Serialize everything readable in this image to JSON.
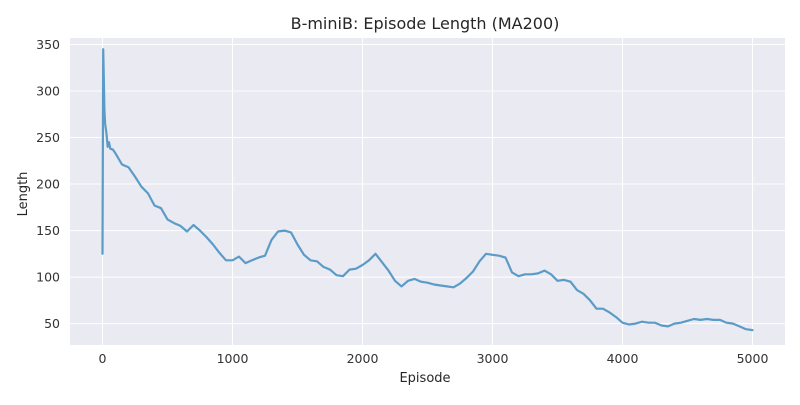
{
  "chart_data": {
    "type": "line",
    "title": "B-miniB: Episode Length (MA200)",
    "xlabel": "Episode",
    "ylabel": "Length",
    "xlim": [
      -250,
      5250
    ],
    "ylim": [
      27,
      357
    ],
    "xticks": [
      0,
      1000,
      2000,
      3000,
      4000,
      5000
    ],
    "yticks": [
      50,
      100,
      150,
      200,
      250,
      300,
      350
    ],
    "grid": true,
    "legend": "none",
    "colors": {
      "background": "#eaeaf2",
      "grid": "#ffffff",
      "line": "#5b9bc8"
    },
    "series": [
      {
        "x": [
          0,
          5,
          10,
          15,
          20,
          30,
          40,
          50,
          60,
          80,
          100,
          150,
          200,
          250,
          300,
          350,
          400,
          450,
          500,
          550,
          600,
          650,
          700,
          750,
          800,
          850,
          900,
          950,
          1000,
          1050,
          1100,
          1150,
          1200,
          1250,
          1300,
          1350,
          1400,
          1450,
          1500,
          1550,
          1600,
          1650,
          1700,
          1750,
          1800,
          1850,
          1900,
          1950,
          2000,
          2050,
          2100,
          2150,
          2200,
          2250,
          2300,
          2350,
          2400,
          2450,
          2500,
          2550,
          2600,
          2650,
          2700,
          2750,
          2800,
          2850,
          2900,
          2950,
          3000,
          3050,
          3100,
          3150,
          3200,
          3250,
          3300,
          3350,
          3400,
          3450,
          3500,
          3550,
          3600,
          3650,
          3700,
          3750,
          3800,
          3850,
          3900,
          3950,
          4000,
          4050,
          4100,
          4150,
          4200,
          4250,
          4300,
          4350,
          4400,
          4450,
          4500,
          4550,
          4600,
          4650,
          4700,
          4750,
          4800,
          4850,
          4900,
          4950,
          5000
        ],
        "values": [
          125,
          345,
          315,
          280,
          265,
          255,
          240,
          245,
          238,
          237,
          233,
          221,
          218,
          208,
          197,
          190,
          177,
          174,
          162,
          158,
          155,
          149,
          156,
          150,
          143,
          135,
          126,
          118,
          118,
          122,
          115,
          118,
          121,
          123,
          140,
          149,
          150,
          148,
          135,
          124,
          118,
          117,
          111,
          108,
          102,
          101,
          108,
          109,
          113,
          118,
          125,
          116,
          107,
          96,
          90,
          96,
          98,
          95,
          94,
          92,
          91,
          90,
          89,
          93,
          99,
          106,
          117,
          125,
          124,
          123,
          121,
          105,
          101,
          103,
          103,
          104,
          107,
          103,
          96,
          97,
          95,
          86,
          82,
          75,
          66,
          66,
          62,
          57,
          51,
          49,
          50,
          52,
          51,
          51,
          48,
          47,
          50,
          51,
          53,
          55,
          54,
          55,
          54,
          54,
          51,
          50,
          47,
          44,
          43
        ]
      }
    ]
  }
}
